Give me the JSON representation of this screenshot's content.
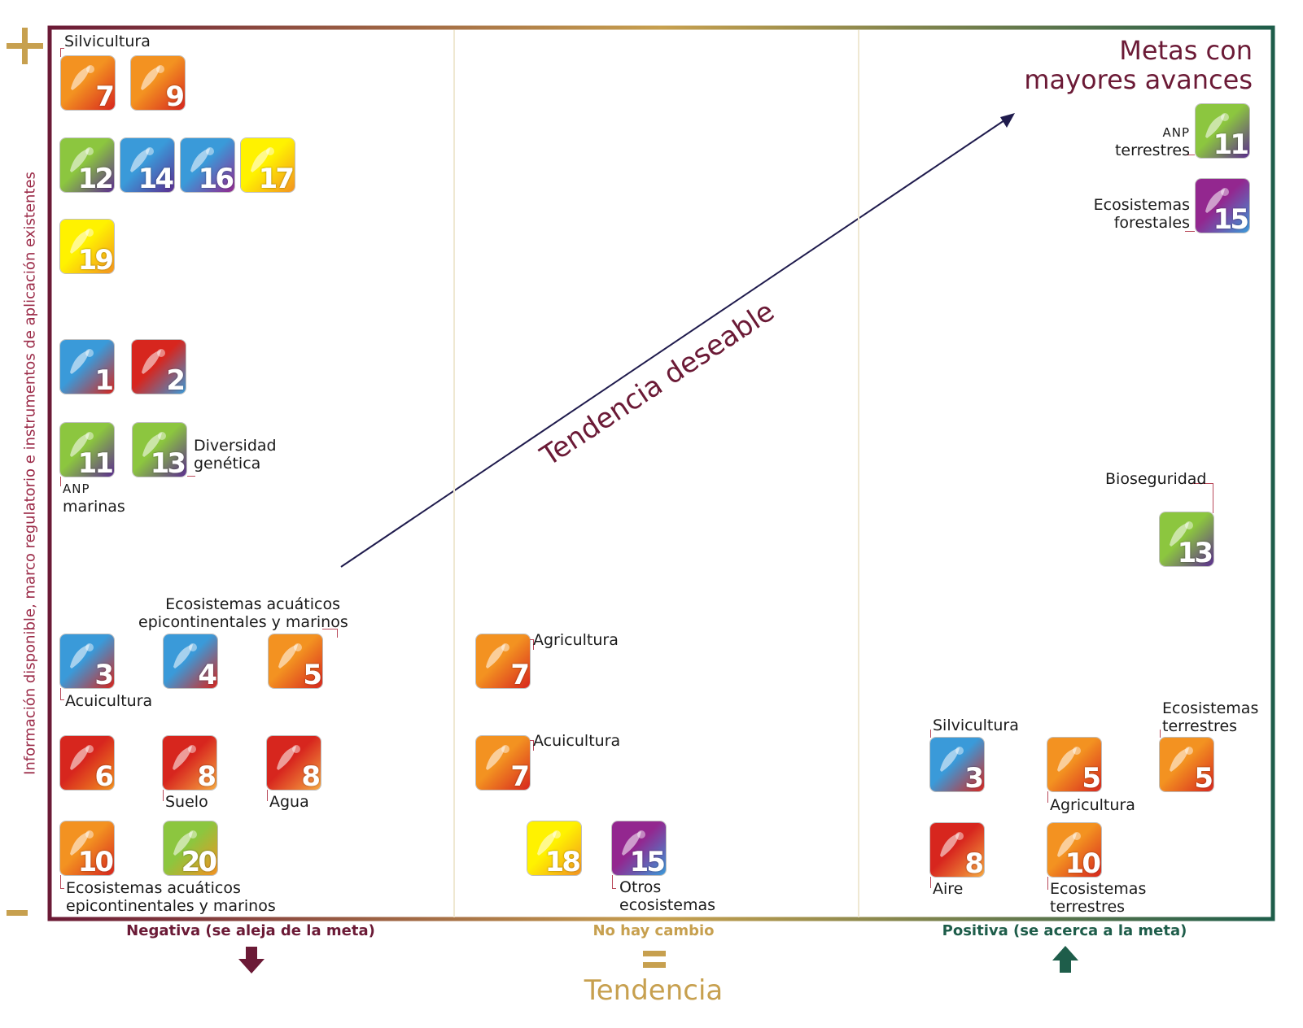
{
  "y_axis_label": "Información disponible, marco regulatorio e instrumentos de aplicación existentes",
  "y_axis_high_symbol": "+",
  "y_axis_low_symbol": "−",
  "x_axis_title": "Tendencia",
  "categories": [
    {
      "label": "Negativa (se aleja de la meta)",
      "color": "#6b1a36",
      "arrow": "down"
    },
    {
      "label": "No hay cambio",
      "color": "#c7a04f",
      "arrow": "equal"
    },
    {
      "label": "Positiva (se acerca a la meta)",
      "color": "#1e5d4a",
      "arrow": "up"
    }
  ],
  "trend_arrow_label": "Tendencia deseable",
  "goal_title": [
    "Metas con",
    "mayores avances"
  ],
  "frame_gradient": [
    "#6b1a36",
    "#c7a04f",
    "#1e5d4a"
  ],
  "icons": [
    {
      "number": "7",
      "colors": [
        "#f39221",
        "#d7261e"
      ]
    },
    {
      "number": "9",
      "colors": [
        "#f39221",
        "#d7261e"
      ]
    },
    {
      "number": "12",
      "colors": [
        "#8cc63f",
        "#5c2d91"
      ]
    },
    {
      "number": "14",
      "colors": [
        "#3a9ad9",
        "#5c2d91"
      ]
    },
    {
      "number": "16",
      "colors": [
        "#3a9ad9",
        "#93278f"
      ]
    },
    {
      "number": "17",
      "colors": [
        "#fff200",
        "#f39221"
      ]
    },
    {
      "number": "19",
      "colors": [
        "#fff200",
        "#f39221"
      ]
    },
    {
      "number": "1",
      "colors": [
        "#3a9ad9",
        "#d7261e"
      ]
    },
    {
      "number": "2",
      "colors": [
        "#d7261e",
        "#3a9ad9"
      ]
    },
    {
      "number": "11",
      "colors": [
        "#8cc63f",
        "#5c2d91"
      ]
    },
    {
      "number": "13",
      "colors": [
        "#8cc63f",
        "#5c2d91"
      ]
    },
    {
      "number": "3",
      "colors": [
        "#3a9ad9",
        "#d7261e"
      ]
    },
    {
      "number": "4",
      "colors": [
        "#3a9ad9",
        "#d7261e"
      ]
    },
    {
      "number": "5",
      "colors": [
        "#f39221",
        "#d7261e"
      ]
    },
    {
      "number": "6",
      "colors": [
        "#d7261e",
        "#f39221"
      ]
    },
    {
      "number": "8",
      "colors": [
        "#d7261e",
        "#f7a941"
      ]
    },
    {
      "number": "10",
      "colors": [
        "#f39221",
        "#d7261e"
      ]
    },
    {
      "number": "20",
      "colors": [
        "#8cc63f",
        "#f39221"
      ]
    },
    {
      "number": "18",
      "colors": [
        "#fff200",
        "#f39221"
      ]
    },
    {
      "number": "15",
      "colors": [
        "#93278f",
        "#3a9ad9"
      ]
    }
  ],
  "labels": {
    "silvicultura_neg": "Silvicultura",
    "diversidad": [
      "Diversidad",
      "genética"
    ],
    "anp_marinas": [
      "ANP",
      "marinas"
    ],
    "eco_acuaticos_top": [
      "Ecosistemas acuáticos",
      "epicontinentales y marinos"
    ],
    "acuicultura_neg": "Acuicultura",
    "suelo": "Suelo",
    "agua": "Agua",
    "eco_acuaticos_bottom": [
      "Ecosistemas acuáticos",
      "epicontinentales y marinos"
    ],
    "agricultura_mid": "Agricultura",
    "acuicultura_mid": "Acuicultura",
    "otros_eco": [
      "Otros",
      "ecosistemas"
    ],
    "anp_terrestres": [
      "ANP",
      "terrestres"
    ],
    "eco_forestales": [
      "Ecosistemas",
      "forestales"
    ],
    "bioseguridad": "Bioseguridad",
    "silvicultura_pos": "Silvicultura",
    "eco_terrestres_top": [
      "Ecosistemas",
      "terrestres"
    ],
    "agricultura_pos": "Agricultura",
    "aire": "Aire",
    "eco_terrestres_bottom": [
      "Ecosistemas",
      "terrestres"
    ]
  }
}
